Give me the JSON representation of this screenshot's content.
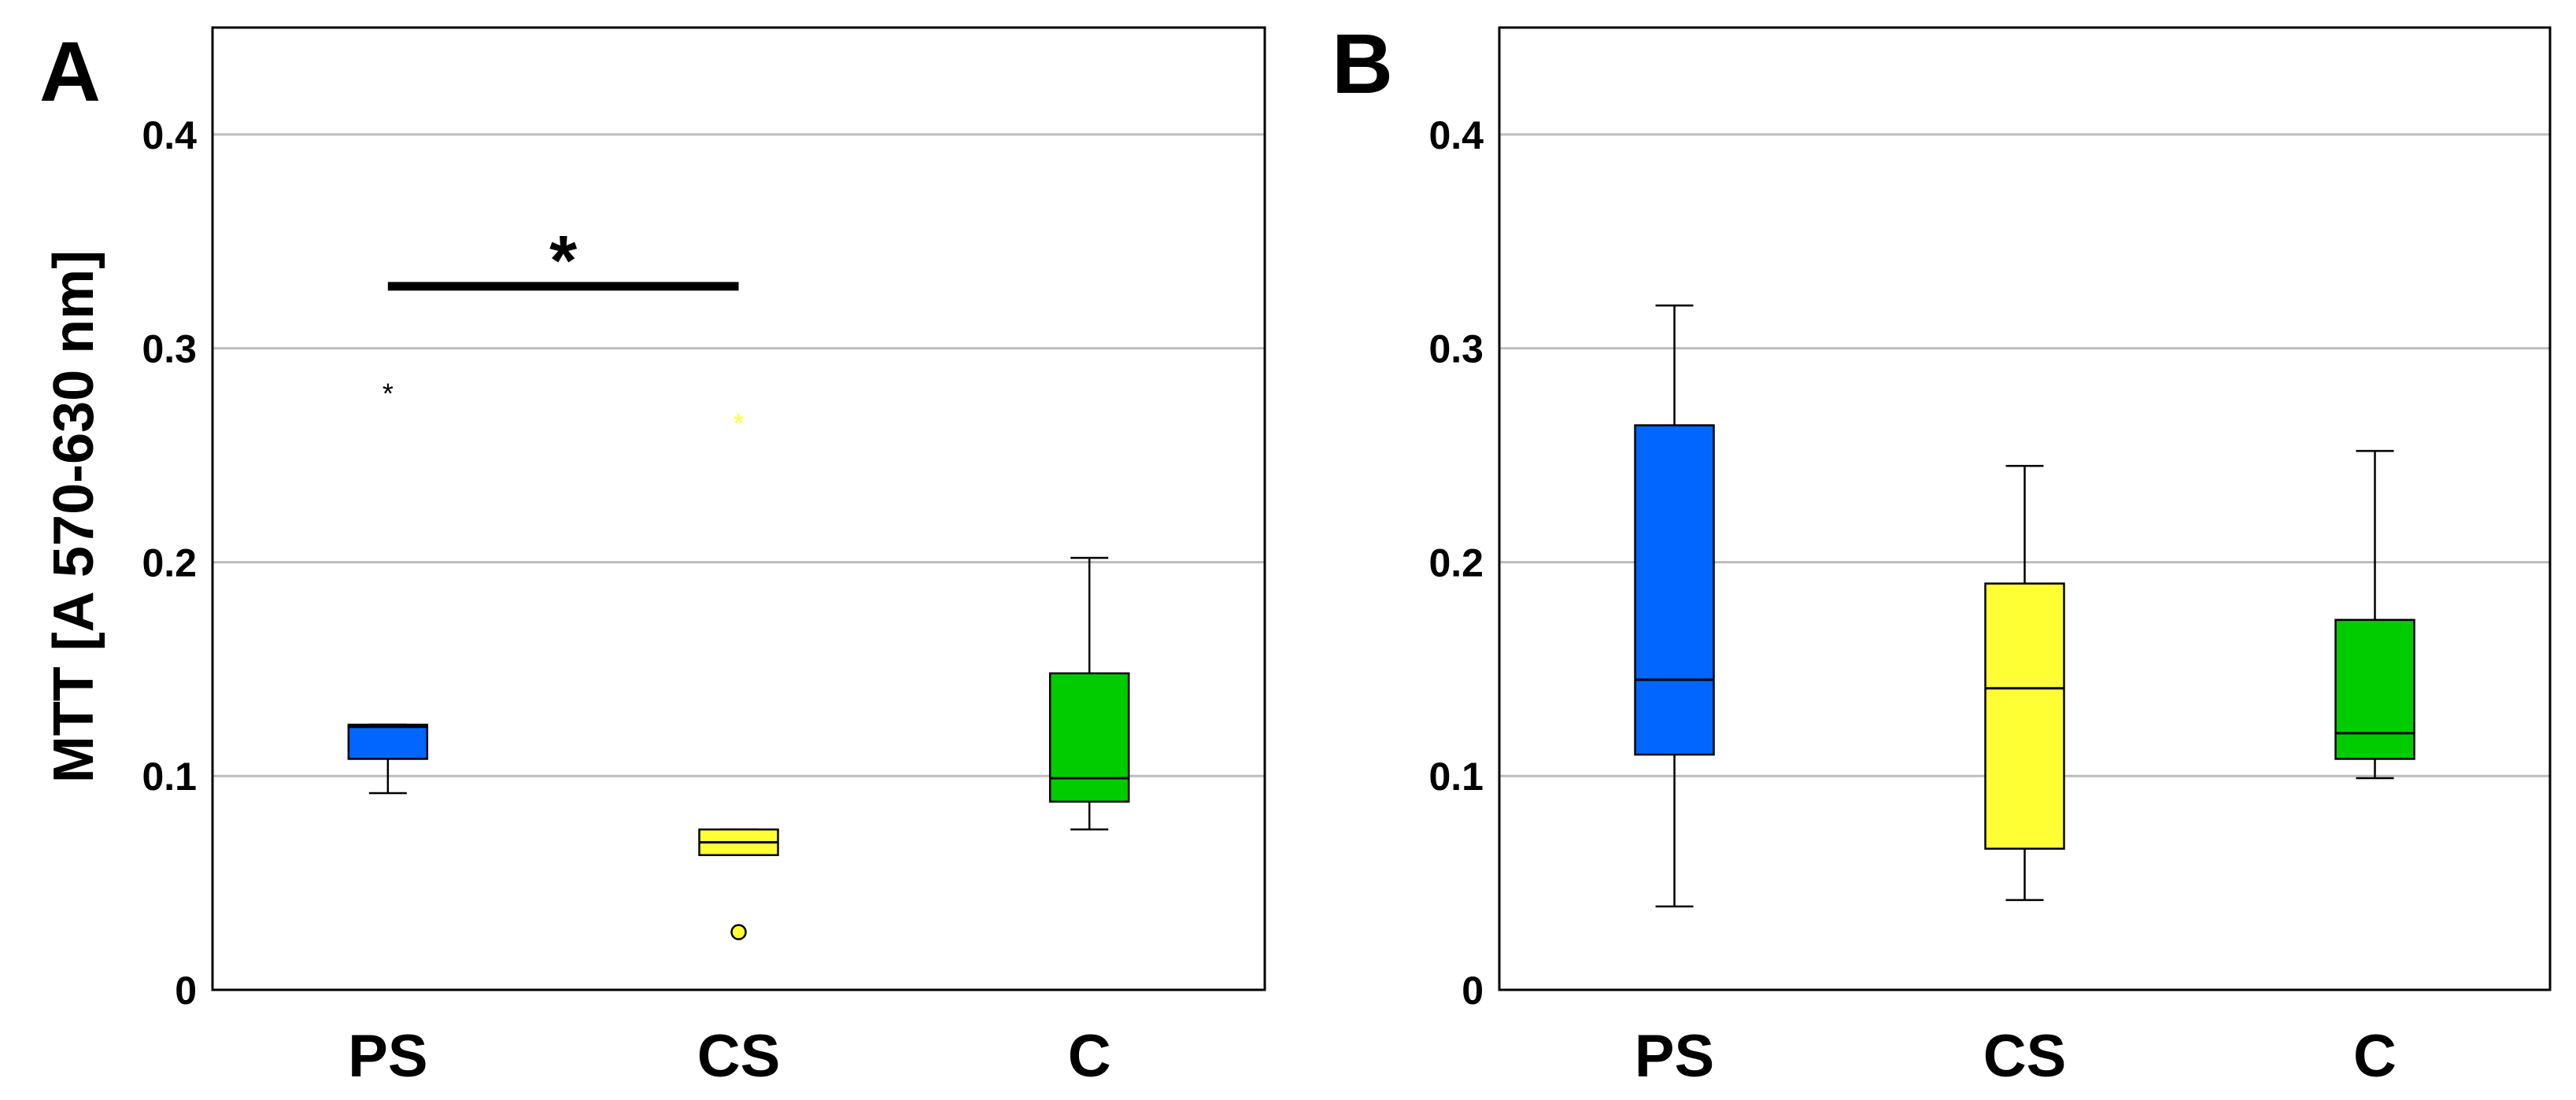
{
  "chart_data": [
    {
      "panel": "A",
      "type": "boxplot",
      "ylabel": "MTT [A 570-630 nm]",
      "ylim": [
        0,
        0.45
      ],
      "yticks": [
        "0",
        "0.1",
        "0.2",
        "0.3",
        "0.4"
      ],
      "ytick_values": [
        0,
        0.1,
        0.2,
        0.3,
        0.4
      ],
      "grid": true,
      "categories": [
        "PS",
        "CS",
        "C"
      ],
      "boxes": [
        {
          "category": "PS",
          "color": "#0066ff",
          "whisker_low": 0.092,
          "q1": 0.108,
          "median": 0.123,
          "q3": 0.124,
          "whisker_high": 0.124,
          "outliers": [],
          "extremes": [
            0.281
          ]
        },
        {
          "category": "CS",
          "color": "#ffff33",
          "whisker_low": 0.063,
          "q1": 0.063,
          "median": 0.069,
          "q3": 0.075,
          "whisker_high": 0.075,
          "outliers": [
            0.027
          ],
          "extremes": [
            0.267
          ]
        },
        {
          "category": "C",
          "color": "#00cc00",
          "whisker_low": 0.075,
          "q1": 0.088,
          "median": 0.099,
          "q3": 0.148,
          "whisker_high": 0.202,
          "outliers": [],
          "extremes": []
        }
      ],
      "significance": {
        "from": "PS",
        "to": "CS",
        "y": 0.329,
        "label": "*"
      }
    },
    {
      "panel": "B",
      "type": "boxplot",
      "ylabel": "",
      "ylim": [
        0,
        0.45
      ],
      "yticks": [
        "0",
        "0.1",
        "0.2",
        "0.3",
        "0.4"
      ],
      "ytick_values": [
        0,
        0.1,
        0.2,
        0.3,
        0.4
      ],
      "grid": true,
      "categories": [
        "PS",
        "CS",
        "C"
      ],
      "boxes": [
        {
          "category": "PS",
          "color": "#0066ff",
          "whisker_low": 0.039,
          "q1": 0.11,
          "median": 0.145,
          "q3": 0.264,
          "whisker_high": 0.32,
          "outliers": [],
          "extremes": []
        },
        {
          "category": "CS",
          "color": "#ffff33",
          "whisker_low": 0.042,
          "q1": 0.066,
          "median": 0.141,
          "q3": 0.19,
          "whisker_high": 0.245,
          "outliers": [],
          "extremes": []
        },
        {
          "category": "C",
          "color": "#00cc00",
          "whisker_low": 0.099,
          "q1": 0.108,
          "median": 0.12,
          "q3": 0.173,
          "whisker_high": 0.252,
          "outliers": [],
          "extremes": []
        }
      ],
      "significance": null
    }
  ]
}
